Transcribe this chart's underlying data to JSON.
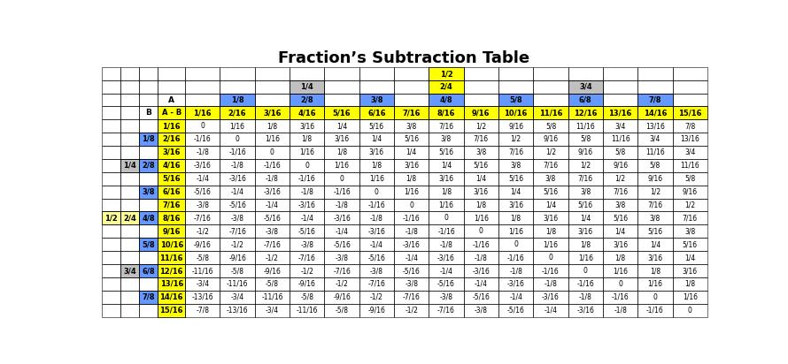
{
  "title": "Fraction’s Subtraction Table",
  "col_headers": [
    "1/16",
    "2/16",
    "3/16",
    "4/16",
    "5/16",
    "6/16",
    "7/16",
    "8/16",
    "9/16",
    "10/16",
    "11/16",
    "12/16",
    "13/16",
    "14/16",
    "15/16"
  ],
  "row_headers": [
    "1/16",
    "2/16",
    "3/16",
    "4/16",
    "5/16",
    "6/16",
    "7/16",
    "8/16",
    "9/16",
    "10/16",
    "11/16",
    "12/16",
    "13/16",
    "14/16",
    "15/16"
  ],
  "cell_data": [
    [
      "0",
      "1/16",
      "1/8",
      "3/16",
      "1/4",
      "5/16",
      "3/8",
      "7/16",
      "1/2",
      "9/16",
      "5/8",
      "11/16",
      "3/4",
      "13/16",
      "7/8"
    ],
    [
      "-1/16",
      "0",
      "1/16",
      "1/8",
      "3/16",
      "1/4",
      "5/16",
      "3/8",
      "7/16",
      "1/2",
      "9/16",
      "5/8",
      "11/16",
      "3/4",
      "13/16"
    ],
    [
      "-1/8",
      "-1/16",
      "0",
      "1/16",
      "1/8",
      "3/16",
      "1/4",
      "5/16",
      "3/8",
      "7/16",
      "1/2",
      "9/16",
      "5/8",
      "11/16",
      "3/4"
    ],
    [
      "-3/16",
      "-1/8",
      "-1/16",
      "0",
      "1/16",
      "1/8",
      "3/16",
      "1/4",
      "5/16",
      "3/8",
      "7/16",
      "1/2",
      "9/16",
      "5/8",
      "11/16"
    ],
    [
      "-1/4",
      "-3/16",
      "-1/8",
      "-1/16",
      "0",
      "1/16",
      "1/8",
      "3/16",
      "1/4",
      "5/16",
      "3/8",
      "7/16",
      "1/2",
      "9/16",
      "5/8"
    ],
    [
      "-5/16",
      "-1/4",
      "-3/16",
      "-1/8",
      "-1/16",
      "0",
      "1/16",
      "1/8",
      "3/16",
      "1/4",
      "5/16",
      "3/8",
      "7/16",
      "1/2",
      "9/16"
    ],
    [
      "-3/8",
      "-5/16",
      "-1/4",
      "-3/16",
      "-1/8",
      "-1/16",
      "0",
      "1/16",
      "1/8",
      "3/16",
      "1/4",
      "5/16",
      "3/8",
      "7/16",
      "1/2"
    ],
    [
      "-7/16",
      "-3/8",
      "-5/16",
      "-1/4",
      "-3/16",
      "-1/8",
      "-1/16",
      "0",
      "1/16",
      "1/8",
      "3/16",
      "1/4",
      "5/16",
      "3/8",
      "7/16"
    ],
    [
      "-1/2",
      "-7/16",
      "-3/8",
      "-5/16",
      "-1/4",
      "-3/16",
      "-1/8",
      "-1/16",
      "0",
      "1/16",
      "1/8",
      "3/16",
      "1/4",
      "5/16",
      "3/8"
    ],
    [
      "-9/16",
      "-1/2",
      "-7/16",
      "-3/8",
      "-5/16",
      "-1/4",
      "-3/16",
      "-1/8",
      "-1/16",
      "0",
      "1/16",
      "1/8",
      "3/16",
      "1/4",
      "5/16"
    ],
    [
      "-5/8",
      "-9/16",
      "-1/2",
      "-7/16",
      "-3/8",
      "-5/16",
      "-1/4",
      "-3/16",
      "-1/8",
      "-1/16",
      "0",
      "1/16",
      "1/8",
      "3/16",
      "1/4"
    ],
    [
      "-11/16",
      "-5/8",
      "-9/16",
      "-1/2",
      "-7/16",
      "-3/8",
      "-5/16",
      "-1/4",
      "-3/16",
      "-1/8",
      "-1/16",
      "0",
      "1/16",
      "1/8",
      "3/16"
    ],
    [
      "-3/4",
      "-11/16",
      "-5/8",
      "-9/16",
      "-1/2",
      "-7/16",
      "-3/8",
      "-5/16",
      "-1/4",
      "-3/16",
      "-1/8",
      "-1/16",
      "0",
      "1/16",
      "1/8"
    ],
    [
      "-13/16",
      "-3/4",
      "-11/16",
      "-5/8",
      "-9/16",
      "-1/2",
      "-7/16",
      "-3/8",
      "-5/16",
      "-1/4",
      "-3/16",
      "-1/8",
      "-1/16",
      "0",
      "1/16"
    ],
    [
      "-7/8",
      "-13/16",
      "-3/4",
      "-11/16",
      "-5/8",
      "-9/16",
      "-1/2",
      "-7/16",
      "-3/8",
      "-5/16",
      "-1/4",
      "-3/16",
      "-1/8",
      "-1/16",
      "0"
    ]
  ],
  "color_yellow": "#FFFF00",
  "color_blue": "#6699FF",
  "color_gray": "#C0C0C0",
  "color_lightyellow": "#FFFF99",
  "color_white": "#FFFFFF",
  "bg_color": "#FFFFFF",
  "title_fontsize": 13,
  "header_fontsize": 6.0,
  "data_fontsize": 5.5
}
